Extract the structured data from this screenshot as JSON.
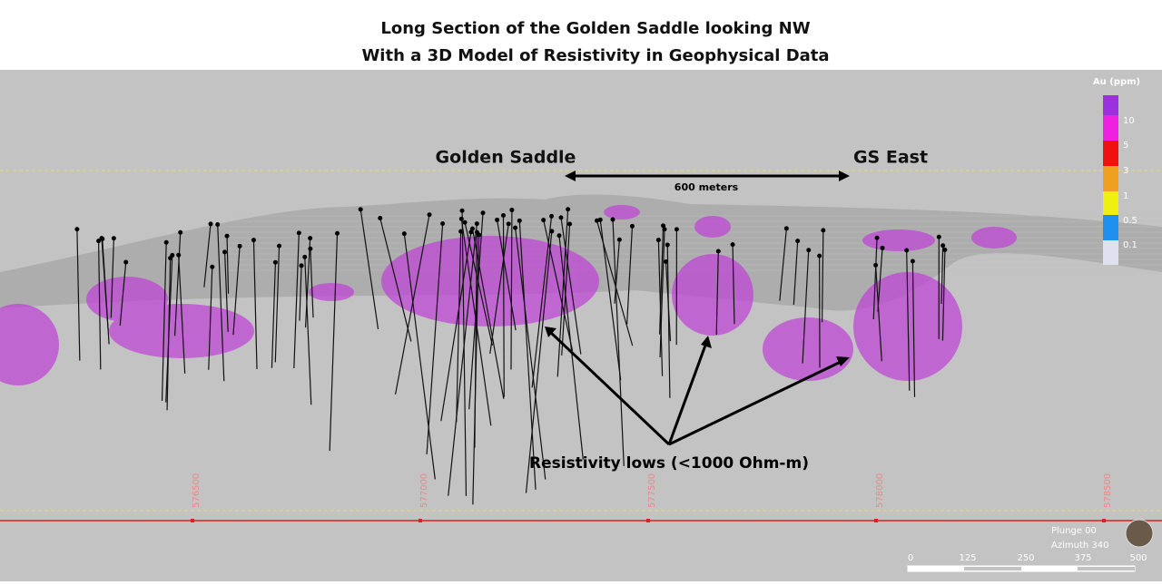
{
  "header": {
    "title_lines": [
      "Long Section of the Golden Saddle looking NW",
      "With a 3D Model of Resistivity in Geophysical Data"
    ]
  },
  "labels": {
    "golden_saddle": "Golden Saddle",
    "gs_east": "GS East",
    "distance": "600 meters",
    "resistivity": "Resistivity lows (<1000 Ohm-m)"
  },
  "legend": {
    "title": "Au (ppm)",
    "items": [
      "10",
      "5",
      "3",
      "1",
      "0.5",
      "0.1"
    ]
  },
  "eastings": [
    "576500",
    "577000",
    "577500",
    "578000",
    "578500"
  ],
  "orientation": {
    "plunge": "Plunge 00",
    "azimuth": "Azimuth 340"
  },
  "scale_bar": [
    "0",
    "125",
    "250",
    "375",
    "500"
  ]
}
